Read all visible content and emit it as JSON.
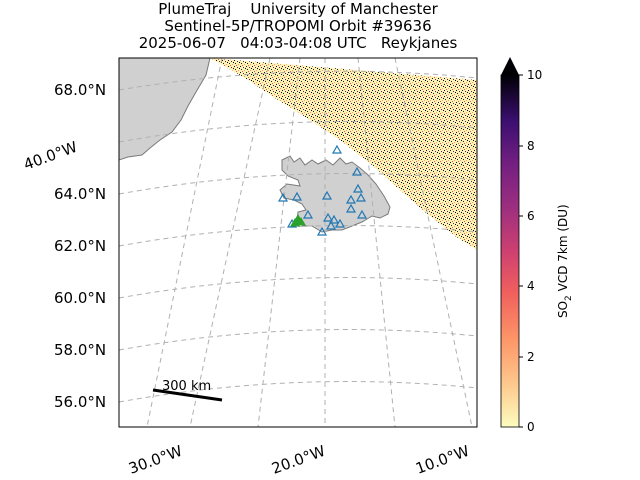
{
  "title": {
    "line1": "PlumeTraj    University of Manchester",
    "line2": "Sentinel-5P/TROPOMI Orbit #39636",
    "line3": "2025-06-07   04:03-04:08 UTC   Reykjanes"
  },
  "map": {
    "latitude_labels": [
      "68.0°N",
      "64.0°N",
      "62.0°N",
      "60.0°N",
      "58.0°N",
      "56.0°N"
    ],
    "longitude_labels": [
      "40.0°W",
      "30.0°W",
      "20.0°W",
      "10.0°W"
    ],
    "scale_bar_label": "300 km",
    "land_color": "#d0d0d0",
    "grid_color": "#b0b0b0",
    "volcano_marker_color": "#1f77b4",
    "active_volcano_color": "#2ca02c"
  },
  "colorbar": {
    "label_prefix": "SO",
    "label_sub": "2",
    "label_suffix": " VCD 7km (DU)",
    "ticks": [
      "0",
      "2",
      "4",
      "6",
      "8",
      "10"
    ],
    "range": [
      0,
      10
    ],
    "colormap": "magma_r",
    "extend": "max"
  }
}
